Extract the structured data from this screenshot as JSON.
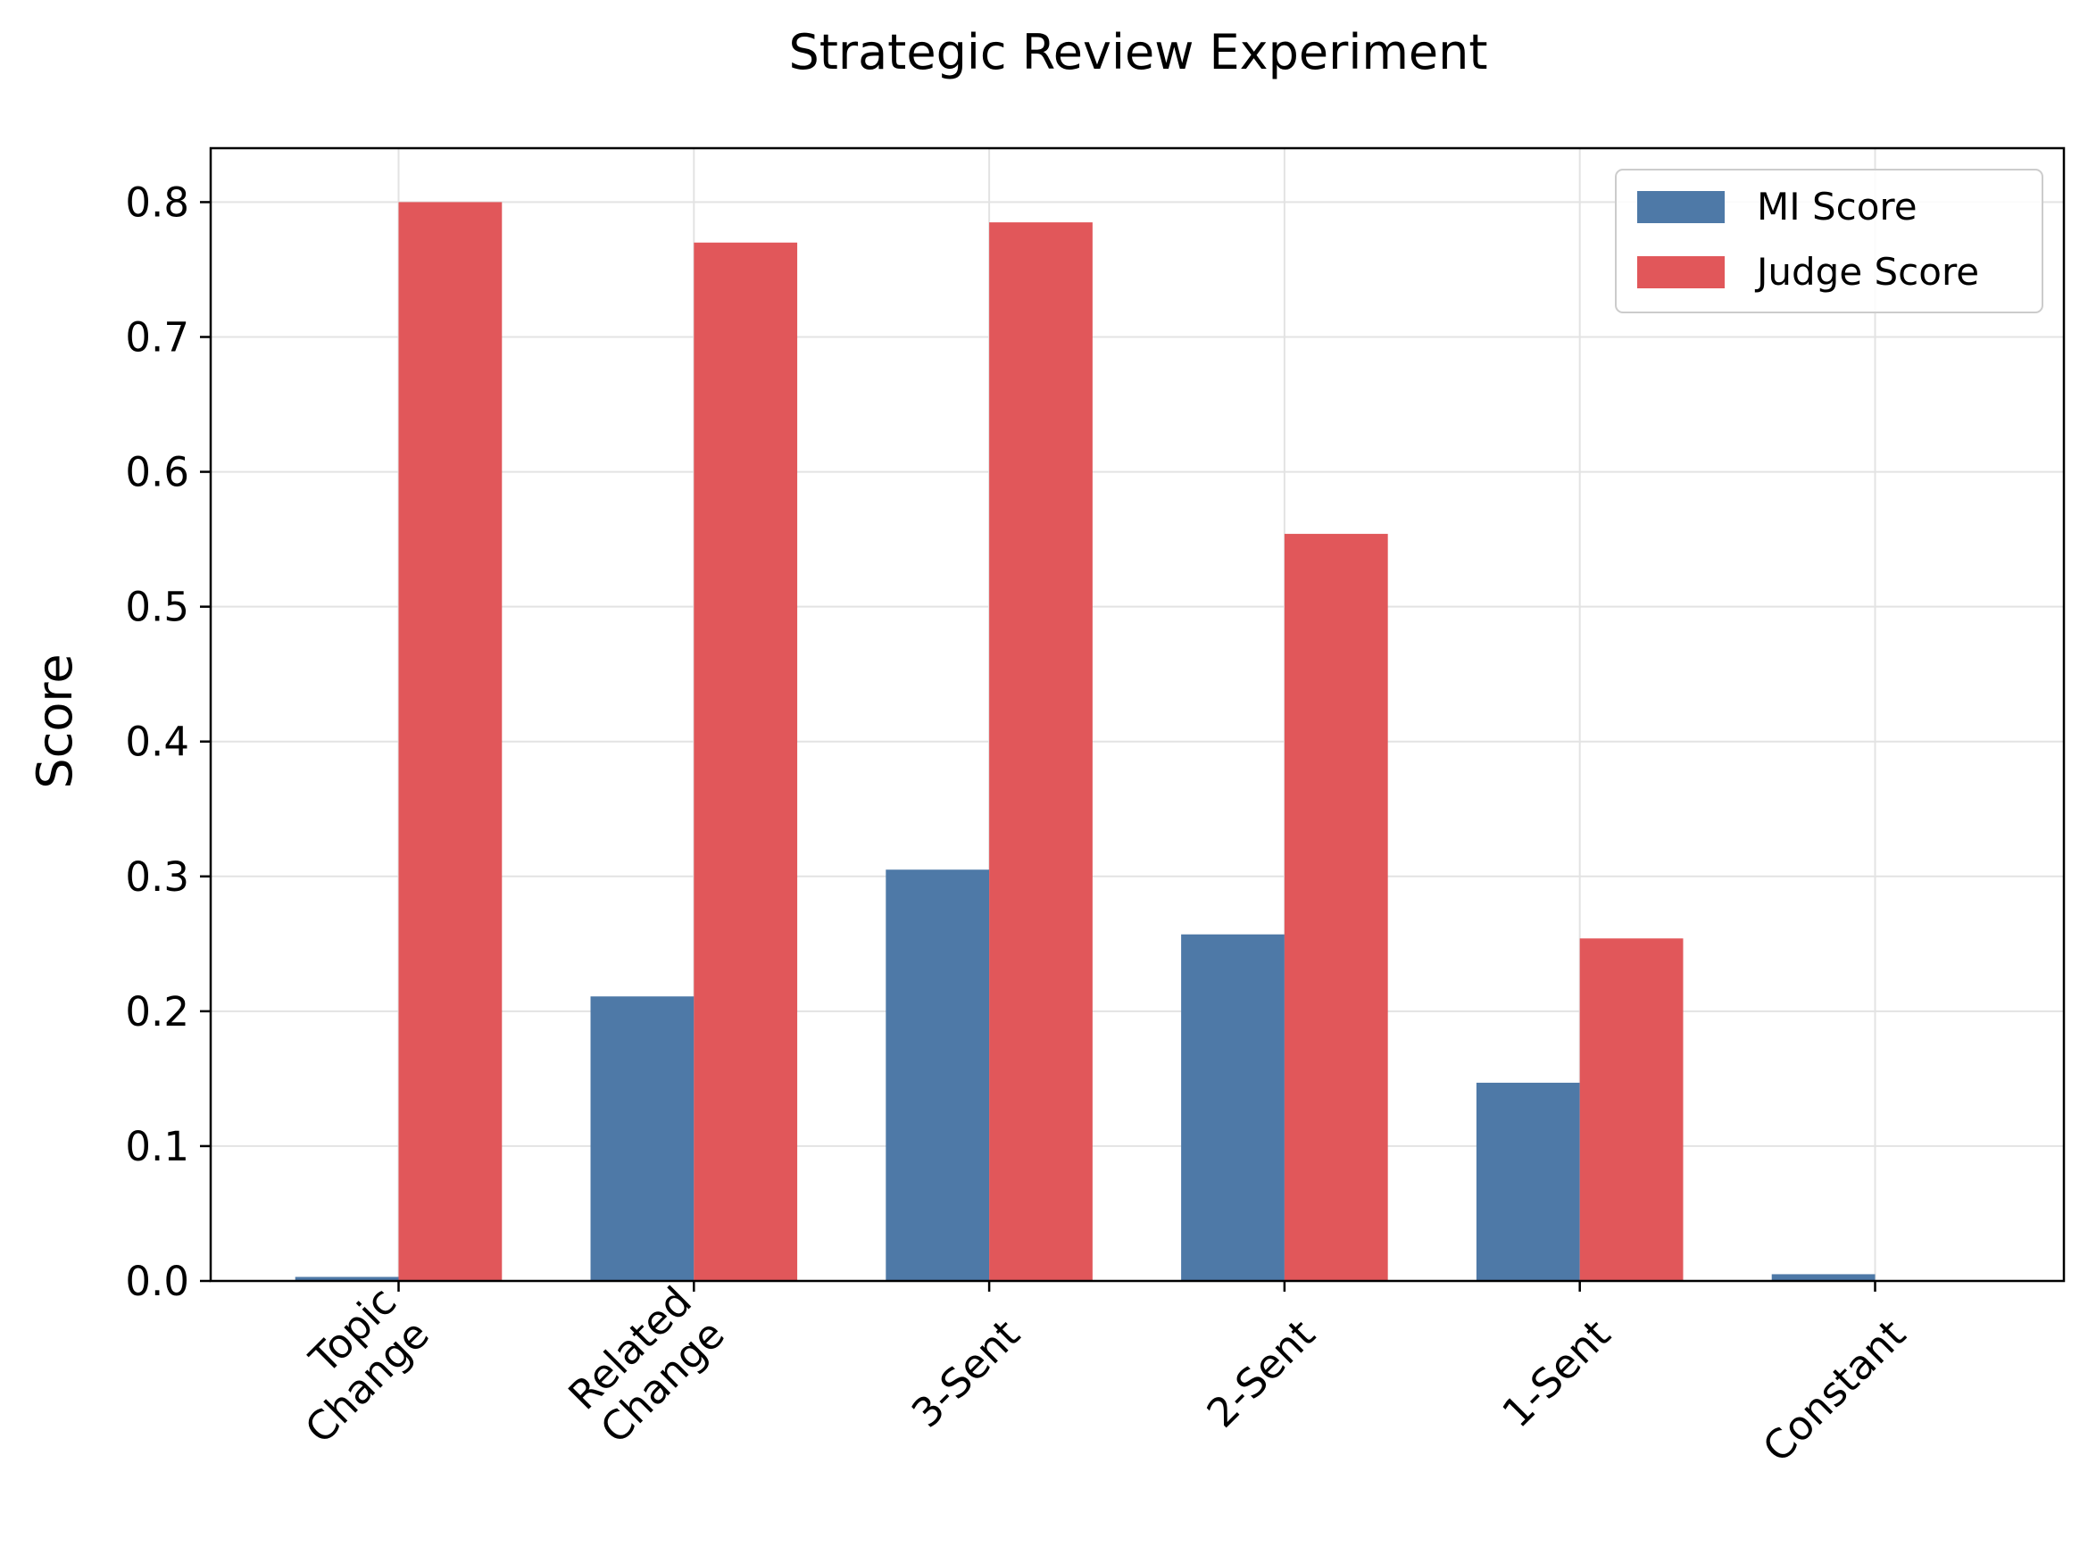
{
  "chart_data": {
    "type": "bar",
    "title": "Strategic Review Experiment",
    "xlabel": "",
    "ylabel": "Score",
    "categories": [
      [
        "Topic",
        "Change"
      ],
      [
        "Related",
        "Change"
      ],
      [
        "3-Sent"
      ],
      [
        "2-Sent"
      ],
      [
        "1-Sent"
      ],
      [
        "Constant"
      ]
    ],
    "series": [
      {
        "name": "MI Score",
        "color": "#4e79a7",
        "values": [
          0.003,
          0.211,
          0.305,
          0.257,
          0.147,
          0.005
        ]
      },
      {
        "name": "Judge Score",
        "color": "#e1575a",
        "values": [
          0.8,
          0.77,
          0.785,
          0.554,
          0.254,
          0.0
        ]
      }
    ],
    "ylim": [
      0,
      0.84
    ],
    "yticks": [
      "0.0",
      "0.1",
      "0.2",
      "0.3",
      "0.4",
      "0.5",
      "0.6",
      "0.7",
      "0.8"
    ],
    "grid": true,
    "legend": "top-right"
  }
}
